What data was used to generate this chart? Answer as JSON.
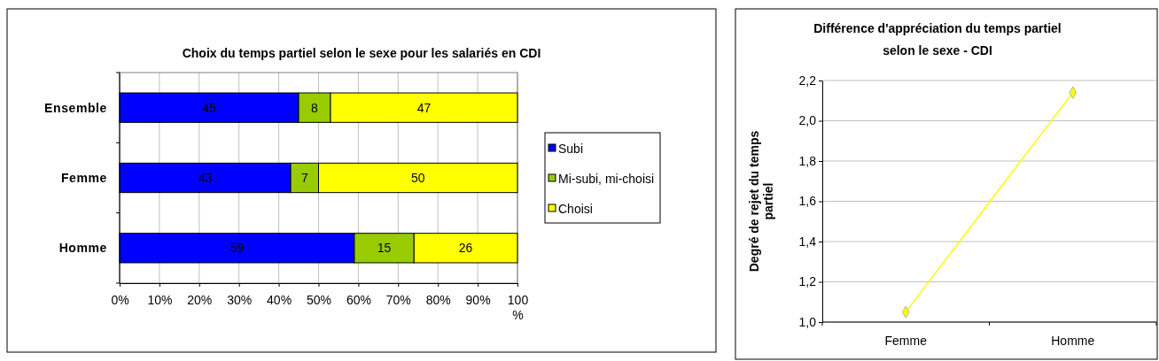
{
  "chart_data": [
    {
      "type": "bar",
      "orientation": "horizontal",
      "stacked": true,
      "title": "Choix du temps partiel selon le sexe pour les salariés en CDI",
      "categories": [
        "Ensemble",
        "Femme",
        "Homme"
      ],
      "series": [
        {
          "name": "Subi",
          "color": "#0000ff",
          "values": [
            45,
            43,
            59
          ]
        },
        {
          "name": "Mi-subi, mi-choisi",
          "color": "#99cc00",
          "values": [
            8,
            7,
            15
          ]
        },
        {
          "name": "Choisi",
          "color": "#ffff00",
          "values": [
            47,
            50,
            26
          ]
        }
      ],
      "xlim": [
        0,
        100
      ],
      "xticks": [
        {
          "value": 0,
          "label": "0%"
        },
        {
          "value": 10,
          "label": "10%"
        },
        {
          "value": 20,
          "label": "20%"
        },
        {
          "value": 30,
          "label": "30%"
        },
        {
          "value": 40,
          "label": "40%"
        },
        {
          "value": 50,
          "label": "50%"
        },
        {
          "value": 60,
          "label": "60%"
        },
        {
          "value": 70,
          "label": "70%"
        },
        {
          "value": 80,
          "label": "80%"
        },
        {
          "value": 90,
          "label": "90%"
        },
        {
          "value": 100,
          "label": "100 %"
        }
      ],
      "grid": "x",
      "legend": "right",
      "data_labels": true
    },
    {
      "type": "line",
      "title": "Différence d'appréciation du temps partiel selon le sexe - CDI",
      "ylabel": "Degré de rejet du temps partiel",
      "categories": [
        "Femme",
        "Homme"
      ],
      "series": [
        {
          "color": "#ffff00",
          "values": [
            1.05,
            2.14
          ]
        }
      ],
      "ylim": [
        1,
        2.2
      ],
      "yticks": [
        {
          "value": 1,
          "label": "1,0"
        },
        {
          "value": 1.2,
          "label": "1,2"
        },
        {
          "value": 1.4,
          "label": "1,4"
        },
        {
          "value": 1.6,
          "label": "1,6"
        },
        {
          "value": 1.8,
          "label": "1,8"
        },
        {
          "value": 2,
          "label": "2,0"
        },
        {
          "value": 2.2,
          "label": "2,2"
        }
      ],
      "grid": "y",
      "marker": "diamond",
      "line_style": "solid"
    }
  ]
}
